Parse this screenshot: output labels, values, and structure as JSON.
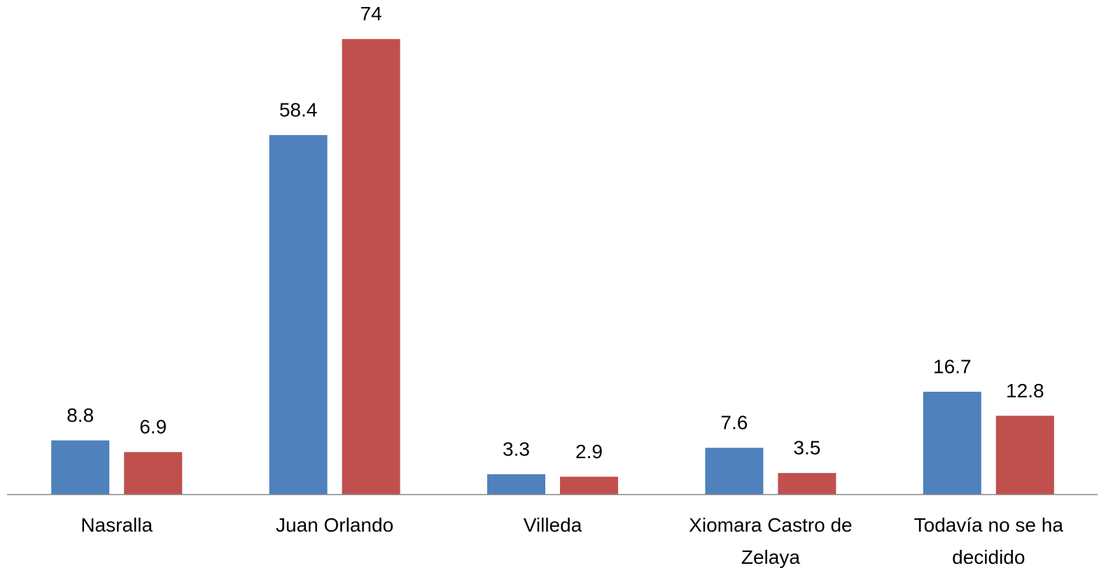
{
  "chart_data": {
    "type": "bar",
    "categories": [
      "Nasralla",
      "Juan Orlando",
      "Villeda",
      "Xiomara Castro de Zelaya",
      "Todavía no se ha decidido"
    ],
    "series": [
      {
        "color": "#4f81bd",
        "values": [
          8.8,
          58.4,
          3.3,
          7.6,
          16.7
        ]
      },
      {
        "color": "#c0504d",
        "values": [
          6.9,
          74,
          2.9,
          3.5,
          12.8
        ]
      }
    ],
    "ylim": [
      0,
      80
    ]
  }
}
